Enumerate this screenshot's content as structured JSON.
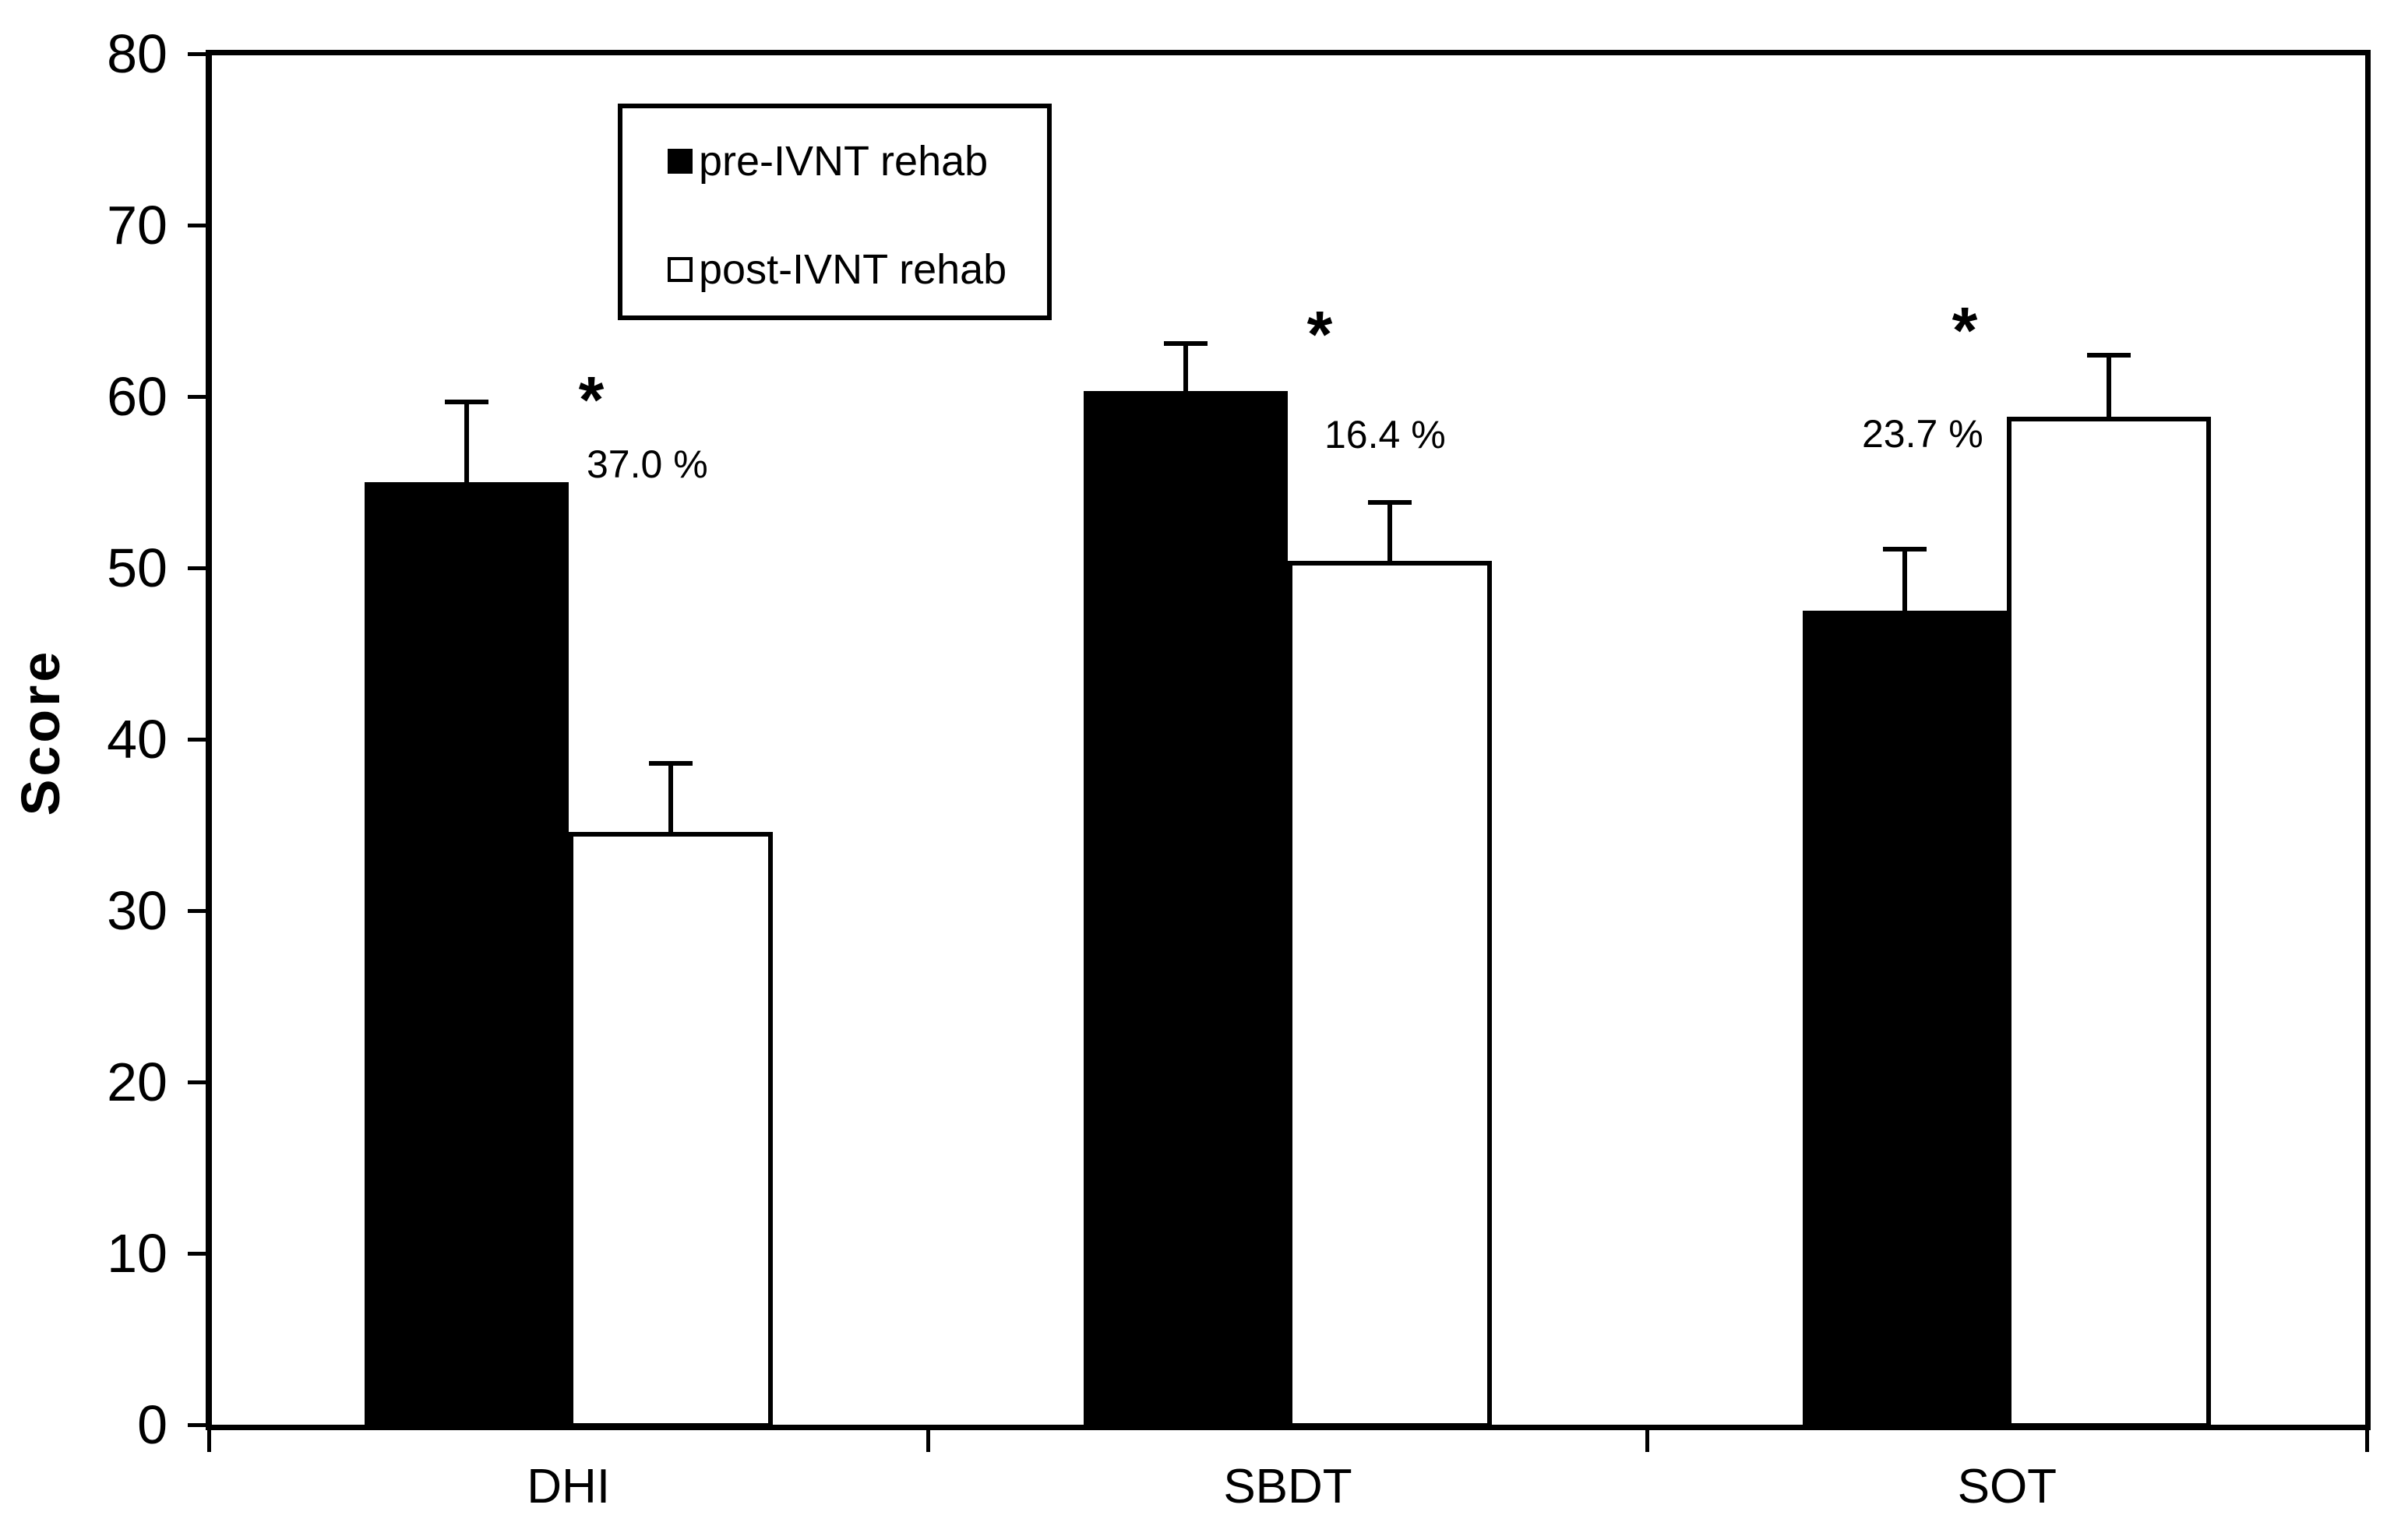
{
  "chart": {
    "y_axis_title": "Score",
    "y_tick_labels": [
      "0",
      "10",
      "20",
      "30",
      "40",
      "50",
      "60",
      "70",
      "80"
    ],
    "x_category_labels": [
      "DHI",
      "SBDT",
      "SOT"
    ],
    "legend": {
      "items": [
        {
          "label": "pre-IVNT rehab",
          "swatch": "black-filled-square"
        },
        {
          "label": "post-IVNT rehab",
          "swatch": "white-open-square"
        }
      ]
    },
    "colors": {
      "foreground": "#000000",
      "background": "#ffffff",
      "pre_bar_fill": "#000000",
      "post_bar_fill": "#ffffff"
    }
  },
  "chart_data": {
    "type": "bar",
    "title": "",
    "xlabel": "",
    "ylabel": "Score",
    "ylim": [
      0,
      80
    ],
    "yticks": [
      0,
      10,
      20,
      30,
      40,
      50,
      60,
      70,
      80
    ],
    "grid": false,
    "legend_position": "upper-left-inside",
    "categories": [
      "DHI",
      "SBDT",
      "SOT"
    ],
    "series": [
      {
        "name": "pre-IVNT rehab",
        "fill": "black",
        "values": [
          55.0,
          60.3,
          47.5
        ],
        "errors_plus": [
          4.7,
          2.8,
          3.6
        ]
      },
      {
        "name": "post-IVNT rehab",
        "fill": "white",
        "values": [
          34.6,
          50.4,
          58.8
        ],
        "errors_plus": [
          4.0,
          3.4,
          3.6
        ]
      }
    ],
    "annotations": [
      {
        "category": "DHI",
        "star": "*",
        "pct": "37.0 %"
      },
      {
        "category": "SBDT",
        "star": "*",
        "pct": "16.4 %"
      },
      {
        "category": "SOT",
        "star": "*",
        "pct": "23.7 %"
      }
    ]
  }
}
